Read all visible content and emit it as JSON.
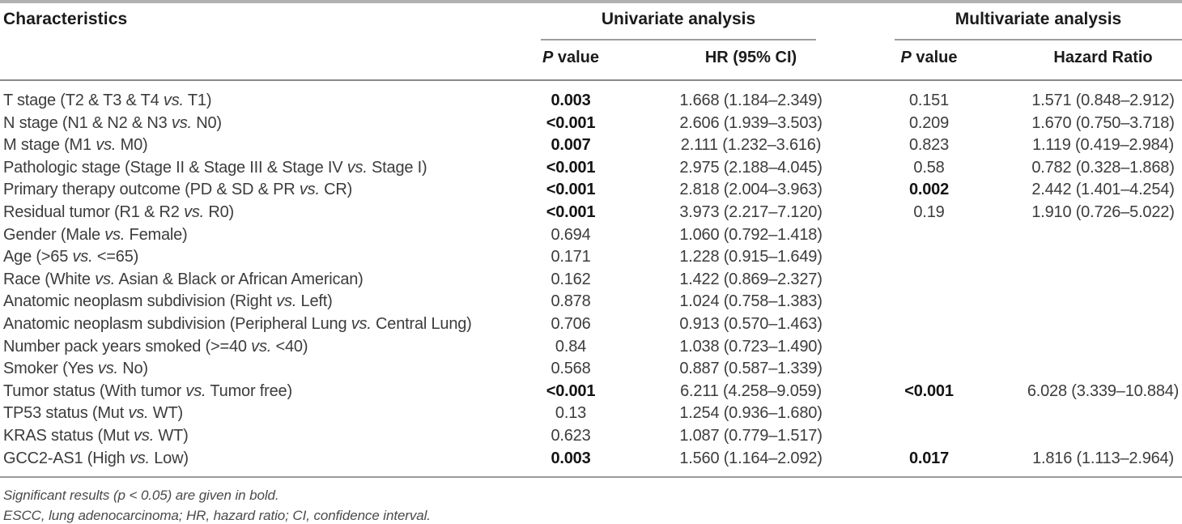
{
  "table": {
    "characteristics_header": "Characteristics",
    "univariate": {
      "title": "Univariate analysis",
      "p_header": {
        "p": "P",
        "rest": "value"
      },
      "hr_header": "HR (95% CI)"
    },
    "multivariate": {
      "title": "Multivariate analysis",
      "p_header": {
        "p": "P",
        "rest": "value"
      },
      "hr_header": "Hazard Ratio"
    },
    "rows": [
      {
        "label": "T stage (T2 & T3 & T4 vs. T1)",
        "uni_p": "0.003",
        "uni_p_bold": true,
        "uni_hr": "1.668 (1.184–2.349)",
        "multi_p": "0.151",
        "multi_p_bold": false,
        "multi_hr": "1.571 (0.848–2.912)"
      },
      {
        "label": "N stage (N1 & N2 & N3 vs. N0)",
        "uni_p": "<0.001",
        "uni_p_bold": true,
        "uni_hr": "2.606 (1.939–3.503)",
        "multi_p": "0.209",
        "multi_p_bold": false,
        "multi_hr": "1.670 (0.750–3.718)"
      },
      {
        "label": "M stage (M1 vs. M0)",
        "uni_p": "0.007",
        "uni_p_bold": true,
        "uni_hr": "2.111 (1.232–3.616)",
        "multi_p": "0.823",
        "multi_p_bold": false,
        "multi_hr": "1.119 (0.419–2.984)"
      },
      {
        "label": "Pathologic stage (Stage II & Stage III & Stage IV vs. Stage I)",
        "uni_p": "<0.001",
        "uni_p_bold": true,
        "uni_hr": "2.975 (2.188–4.045)",
        "multi_p": "0.58",
        "multi_p_bold": false,
        "multi_hr": "0.782 (0.328–1.868)"
      },
      {
        "label": "Primary therapy outcome (PD & SD & PR vs. CR)",
        "uni_p": "<0.001",
        "uni_p_bold": true,
        "uni_hr": "2.818 (2.004–3.963)",
        "multi_p": "0.002",
        "multi_p_bold": true,
        "multi_hr": "2.442 (1.401–4.254)"
      },
      {
        "label": "Residual tumor (R1 & R2 vs. R0)",
        "uni_p": "<0.001",
        "uni_p_bold": true,
        "uni_hr": "3.973 (2.217–7.120)",
        "multi_p": "0.19",
        "multi_p_bold": false,
        "multi_hr": "1.910 (0.726–5.022)"
      },
      {
        "label": "Gender (Male vs. Female)",
        "uni_p": "0.694",
        "uni_p_bold": false,
        "uni_hr": "1.060 (0.792–1.418)",
        "multi_p": "",
        "multi_p_bold": false,
        "multi_hr": ""
      },
      {
        "label": "Age (>65 vs. <=65)",
        "uni_p": "0.171",
        "uni_p_bold": false,
        "uni_hr": "1.228 (0.915–1.649)",
        "multi_p": "",
        "multi_p_bold": false,
        "multi_hr": ""
      },
      {
        "label": "Race (White vs. Asian & Black or African American)",
        "uni_p": "0.162",
        "uni_p_bold": false,
        "uni_hr": "1.422 (0.869–2.327)",
        "multi_p": "",
        "multi_p_bold": false,
        "multi_hr": ""
      },
      {
        "label": "Anatomic neoplasm subdivision (Right vs. Left)",
        "uni_p": "0.878",
        "uni_p_bold": false,
        "uni_hr": "1.024 (0.758–1.383)",
        "multi_p": "",
        "multi_p_bold": false,
        "multi_hr": ""
      },
      {
        "label": "Anatomic neoplasm subdivision (Peripheral Lung vs. Central Lung)",
        "uni_p": "0.706",
        "uni_p_bold": false,
        "uni_hr": "0.913 (0.570–1.463)",
        "multi_p": "",
        "multi_p_bold": false,
        "multi_hr": ""
      },
      {
        "label": "Number pack years smoked (>=40 vs. <40)",
        "uni_p": "0.84",
        "uni_p_bold": false,
        "uni_hr": "1.038 (0.723–1.490)",
        "multi_p": "",
        "multi_p_bold": false,
        "multi_hr": ""
      },
      {
        "label": "Smoker (Yes vs. No)",
        "uni_p": "0.568",
        "uni_p_bold": false,
        "uni_hr": "0.887 (0.587–1.339)",
        "multi_p": "",
        "multi_p_bold": false,
        "multi_hr": ""
      },
      {
        "label": "Tumor status (With tumor vs. Tumor free)",
        "uni_p": "<0.001",
        "uni_p_bold": true,
        "uni_hr": "6.211 (4.258–9.059)",
        "multi_p": "<0.001",
        "multi_p_bold": true,
        "multi_hr": "6.028 (3.339–10.884)"
      },
      {
        "label": "TP53 status (Mut vs. WT)",
        "uni_p": "0.13",
        "uni_p_bold": false,
        "uni_hr": "1.254 (0.936–1.680)",
        "multi_p": "",
        "multi_p_bold": false,
        "multi_hr": ""
      },
      {
        "label": "KRAS status (Mut vs. WT)",
        "uni_p": "0.623",
        "uni_p_bold": false,
        "uni_hr": "1.087 (0.779–1.517)",
        "multi_p": "",
        "multi_p_bold": false,
        "multi_hr": ""
      },
      {
        "label": "GCC2-AS1 (High vs. Low)",
        "uni_p": "0.003",
        "uni_p_bold": true,
        "uni_hr": "1.560 (1.164–2.092)",
        "multi_p": "0.017",
        "multi_p_bold": true,
        "multi_hr": "1.816 (1.113–2.964)"
      }
    ],
    "footnotes": [
      "Significant results (p < 0.05) are given in bold.",
      "ESCC, lung adenocarcinoma; HR, hazard ratio; CI, confidence interval."
    ]
  }
}
